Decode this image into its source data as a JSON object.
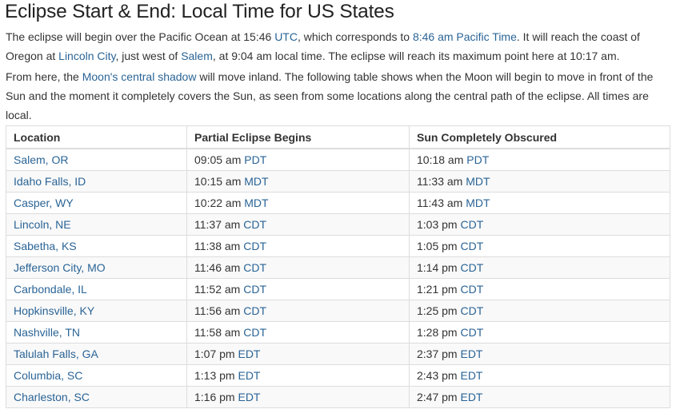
{
  "title": "Eclipse Start & End: Local Time for US States",
  "para1": [
    {
      "text": "The eclipse will begin over the Pacific Ocean at 15:46 "
    },
    {
      "text": "UTC",
      "link": true
    },
    {
      "text": ", which corresponds to "
    },
    {
      "text": "8:46 am Pacific Time",
      "link": true
    },
    {
      "text": ". It will reach the coast of Oregon at "
    },
    {
      "text": "Lincoln City",
      "link": true
    },
    {
      "text": ", just west of "
    },
    {
      "text": "Salem",
      "link": true
    },
    {
      "text": ", at 9:04 am local time. The eclipse will reach its maximum point here at 10:17 am."
    }
  ],
  "para2": [
    {
      "text": "From here, the "
    },
    {
      "text": "Moon's central shadow",
      "link": true
    },
    {
      "text": " will move inland. The following table shows when the Moon will begin to move in front of the Sun and the moment it completely covers the Sun, as seen from some locations along the central path of the eclipse. All times are local."
    }
  ],
  "table": {
    "headers": [
      "Location",
      "Partial Eclipse Begins",
      "Sun Completely Obscured"
    ],
    "rows": [
      {
        "location": "Salem, OR",
        "begin_time": "09:05 am",
        "begin_tz": "PDT",
        "full_time": "10:18 am",
        "full_tz": "PDT"
      },
      {
        "location": "Idaho Falls, ID",
        "begin_time": "10:15 am",
        "begin_tz": "MDT",
        "full_time": "11:33 am",
        "full_tz": "MDT"
      },
      {
        "location": "Casper, WY",
        "begin_time": "10:22 am",
        "begin_tz": "MDT",
        "full_time": "11:43 am",
        "full_tz": "MDT"
      },
      {
        "location": "Lincoln, NE",
        "begin_time": "11:37 am",
        "begin_tz": "CDT",
        "full_time": "1:03 pm",
        "full_tz": "CDT"
      },
      {
        "location": "Sabetha, KS",
        "begin_time": "11:38 am",
        "begin_tz": "CDT",
        "full_time": "1:05 pm",
        "full_tz": "CDT"
      },
      {
        "location": "Jefferson City, MO",
        "begin_time": "11:46 am",
        "begin_tz": "CDT",
        "full_time": "1:14 pm",
        "full_tz": "CDT"
      },
      {
        "location": "Carbondale, IL",
        "begin_time": "11:52 am",
        "begin_tz": "CDT",
        "full_time": "1:21 pm",
        "full_tz": "CDT"
      },
      {
        "location": "Hopkinsville, KY",
        "begin_time": "11:56 am",
        "begin_tz": "CDT",
        "full_time": "1:25 pm",
        "full_tz": "CDT"
      },
      {
        "location": "Nashville, TN",
        "begin_time": "11:58 am",
        "begin_tz": "CDT",
        "full_time": "1:28 pm",
        "full_tz": "CDT"
      },
      {
        "location": "Talulah Falls, GA",
        "begin_time": "1:07 pm",
        "begin_tz": "EDT",
        "full_time": "2:37 pm",
        "full_tz": "EDT"
      },
      {
        "location": "Columbia, SC",
        "begin_time": "1:13 pm",
        "begin_tz": "EDT",
        "full_time": "2:43 pm",
        "full_tz": "EDT"
      },
      {
        "location": "Charleston, SC",
        "begin_time": "1:16 pm",
        "begin_tz": "EDT",
        "full_time": "2:47 pm",
        "full_tz": "EDT"
      }
    ]
  },
  "colors": {
    "link": "#2a6496",
    "text": "#333333",
    "stripe": "#f9f9f9"
  }
}
